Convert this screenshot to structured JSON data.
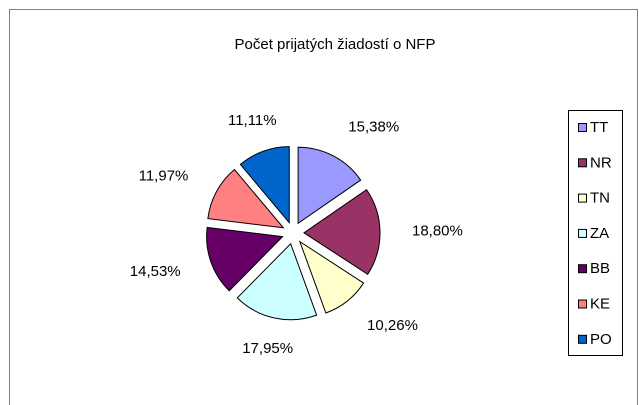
{
  "chart_data": {
    "type": "pie",
    "title": "Počet prijatých žiadostí o NFP",
    "categories": [
      "TT",
      "NR",
      "TN",
      "ZA",
      "BB",
      "KE",
      "PO"
    ],
    "values": [
      15.38,
      18.8,
      10.26,
      17.95,
      14.53,
      11.97,
      11.11
    ],
    "value_labels": [
      "15,38%",
      "18,80%",
      "10,26%",
      "17,95%",
      "14,53%",
      "11,97%",
      "11,11%"
    ],
    "colors": [
      "#9999ff",
      "#993366",
      "#ffffcc",
      "#ccffff",
      "#660066",
      "#ff8080",
      "#0066cc"
    ],
    "legend": "right"
  }
}
